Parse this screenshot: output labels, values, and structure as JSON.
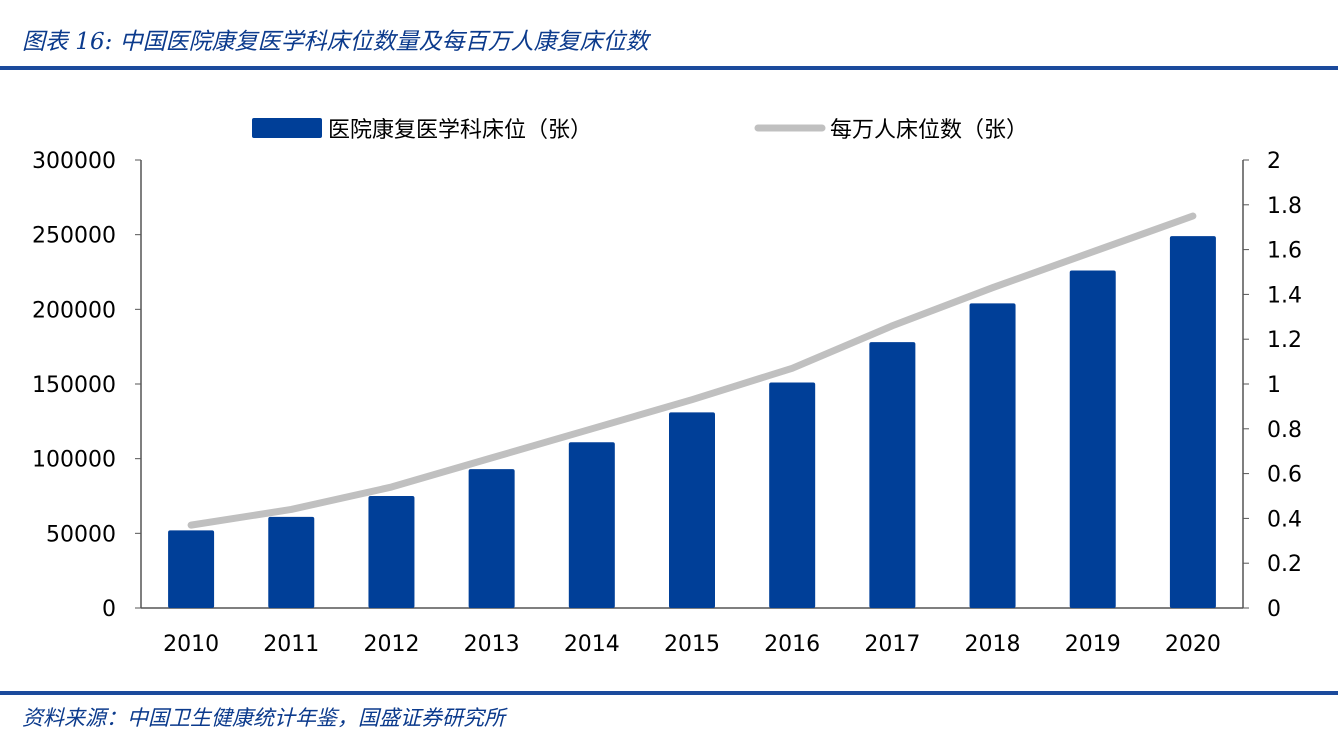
{
  "title": "图表 16:  中国医院康复医学科床位数量及每百万人康复床位数",
  "source": "资料来源：中国卫生健康统计年鉴，国盛证券研究所",
  "colors": {
    "bar": "#003f98",
    "line": "#c0c0c0",
    "rule": "#1b4a9c"
  },
  "chart_data": {
    "type": "bar+line",
    "categories": [
      "2010",
      "2011",
      "2012",
      "2013",
      "2014",
      "2015",
      "2016",
      "2017",
      "2018",
      "2019",
      "2020"
    ],
    "series": [
      {
        "name": "医院康复医学科床位（张）",
        "type": "bar",
        "axis": "left",
        "values": [
          52000,
          61000,
          75000,
          93000,
          111000,
          131000,
          151000,
          178000,
          204000,
          226000,
          249000
        ]
      },
      {
        "name": "每万人床位数（张）",
        "type": "line",
        "axis": "right",
        "values": [
          0.37,
          0.44,
          0.54,
          0.67,
          0.8,
          0.93,
          1.07,
          1.26,
          1.43,
          1.59,
          1.75
        ]
      }
    ],
    "y_left": {
      "range": [
        0,
        300000
      ],
      "ticks": [
        "0",
        "50000",
        "100000",
        "150000",
        "200000",
        "250000",
        "300000"
      ]
    },
    "y_right": {
      "range": [
        0,
        2
      ],
      "ticks": [
        "0",
        "0.2",
        "0.4",
        "0.6",
        "0.8",
        "1",
        "1.2",
        "1.4",
        "1.6",
        "1.8",
        "2"
      ]
    },
    "legend": "top",
    "grid": false
  }
}
